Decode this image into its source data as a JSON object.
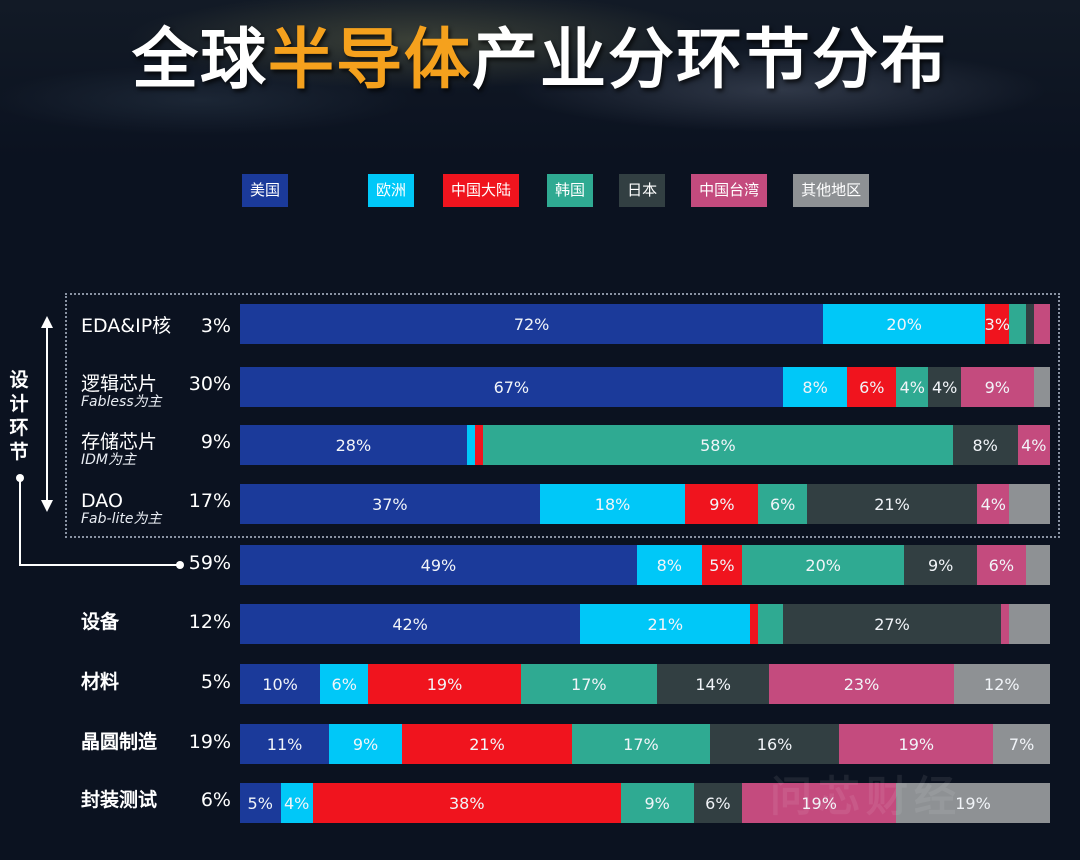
{
  "title": {
    "part1": "全球",
    "highlight": "半导体",
    "part2": "产业分环节分布"
  },
  "colors": {
    "us": "#1b3a9a",
    "europe": "#00c8f8",
    "china_mainland": "#f0141e",
    "korea": "#2faa92",
    "japan": "#323f42",
    "taiwan": "#c44b7e",
    "others": "#8e9194",
    "background": "#0b1220",
    "title_highlight": "#f5a11d"
  },
  "legend": [
    {
      "label": "美国",
      "key": "us"
    },
    {
      "label": "欧洲",
      "key": "europe"
    },
    {
      "label": "中国大陆",
      "key": "china_mainland"
    },
    {
      "label": "韩国",
      "key": "korea"
    },
    {
      "label": "日本",
      "key": "japan"
    },
    {
      "label": "中国台湾",
      "key": "taiwan"
    },
    {
      "label": "其他地区",
      "key": "others"
    }
  ],
  "design_group": {
    "label": "设计环节",
    "total": "59%"
  },
  "watermark": "问芯财经",
  "chart_data": {
    "type": "bar",
    "orientation": "horizontal",
    "stacked": "100%",
    "title": "全球半导体产业分环节分布",
    "legend_position": "top",
    "series_names": [
      "美国",
      "欧洲",
      "中国大陆",
      "韩国",
      "日本",
      "中国台湾",
      "其他地区"
    ],
    "rows": [
      {
        "name": "EDA&IP核",
        "sub": "",
        "share": "3%",
        "group": "设计环节",
        "values": [
          72,
          20,
          3,
          2,
          1,
          2,
          0
        ],
        "labels": [
          "72%",
          "20%",
          "3%",
          "",
          "",
          "",
          ""
        ]
      },
      {
        "name": "逻辑芯片",
        "sub": "Fabless为主",
        "share": "30%",
        "group": "设计环节",
        "values": [
          67,
          8,
          6,
          4,
          4,
          9,
          2
        ],
        "labels": [
          "67%",
          "8%",
          "6%",
          "4%",
          "4%",
          "9%",
          ""
        ]
      },
      {
        "name": "存储芯片",
        "sub": "IDM为主",
        "share": "9%",
        "group": "设计环节",
        "values": [
          28,
          1,
          1,
          58,
          8,
          4,
          0
        ],
        "labels": [
          "28%",
          "",
          "",
          "58%",
          "8%",
          "4%",
          ""
        ]
      },
      {
        "name": "DAO",
        "sub": "Fab-lite为主",
        "share": "17%",
        "group": "设计环节",
        "values": [
          37,
          18,
          9,
          6,
          21,
          4,
          5
        ],
        "labels": [
          "37%",
          "18%",
          "9%",
          "6%",
          "21%",
          "4%",
          ""
        ]
      },
      {
        "name": "",
        "sub": "",
        "share": "59%",
        "group": "设计环节合计",
        "values": [
          49,
          8,
          5,
          20,
          9,
          6,
          3
        ],
        "labels": [
          "49%",
          "8%",
          "5%",
          "20%",
          "9%",
          "6%",
          ""
        ]
      },
      {
        "name": "设备",
        "sub": "",
        "share": "12%",
        "group": "",
        "values": [
          42,
          21,
          1,
          3,
          27,
          1,
          5
        ],
        "labels": [
          "42%",
          "21%",
          "",
          "",
          "27%",
          "",
          ""
        ]
      },
      {
        "name": "材料",
        "sub": "",
        "share": "5%",
        "group": "",
        "values": [
          10,
          6,
          19,
          17,
          14,
          23,
          12
        ],
        "labels": [
          "10%",
          "6%",
          "19%",
          "17%",
          "14%",
          "23%",
          "12%"
        ]
      },
      {
        "name": "晶圆制造",
        "sub": "",
        "share": "19%",
        "group": "",
        "values": [
          11,
          9,
          21,
          17,
          16,
          19,
          7
        ],
        "labels": [
          "11%",
          "9%",
          "21%",
          "17%",
          "16%",
          "19%",
          "7%"
        ]
      },
      {
        "name": "封装测试",
        "sub": "",
        "share": "6%",
        "group": "",
        "values": [
          5,
          4,
          38,
          9,
          6,
          19,
          19
        ],
        "labels": [
          "5%",
          "4%",
          "38%",
          "9%",
          "6%",
          "19%",
          "19%"
        ]
      }
    ],
    "xlabel": "",
    "ylabel": "",
    "grid": false
  }
}
